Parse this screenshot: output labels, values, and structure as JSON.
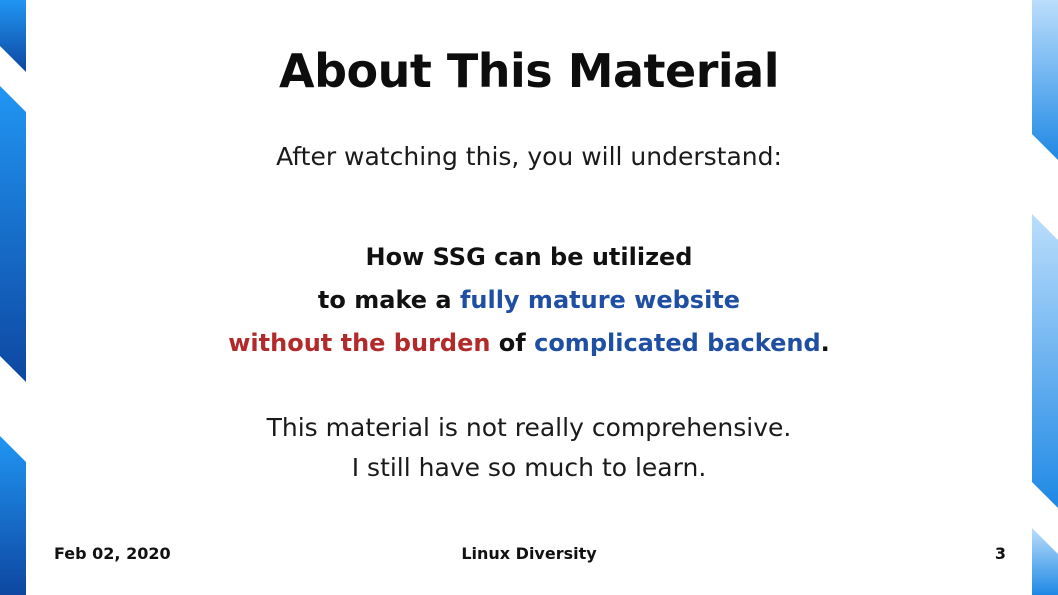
{
  "slide": {
    "title": "About This Material",
    "intro": "After watching this, you will understand:",
    "statement": {
      "line1": "How SSG can be utilized",
      "line2_prefix": "to make a ",
      "line2_highlight": "fully mature website",
      "line3_highlight_red": "without the burden",
      "line3_middle": " of ",
      "line3_highlight_blue": "complicated backend",
      "line3_suffix": "."
    },
    "note": {
      "line1": "This material is not really comprehensive.",
      "line2": "I still have so much to learn."
    }
  },
  "footer": {
    "date": "Feb 02, 2020",
    "center": "Linux Diversity",
    "page_number": "3"
  },
  "colors": {
    "highlight_blue": "#1e4fa3",
    "highlight_red": "#b22a2a",
    "stripe_dark": "#1565c0",
    "stripe_mid": "#1e88e5",
    "stripe_light": "#90caf9"
  }
}
